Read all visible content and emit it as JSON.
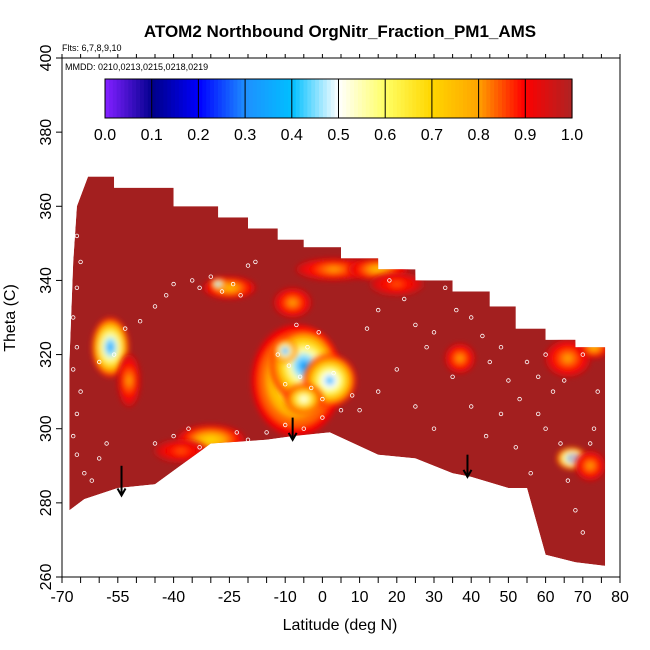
{
  "chart_data": {
    "type": "heatmap",
    "title": "ATOM2 Northbound OrgNitr_Fraction_PM1_AMS",
    "flights_note": "Flts: 6,7,8,9,10",
    "dates_note": "MMDD: 0210,0213,0215,0218,0219",
    "xlabel": "Latitude (deg N)",
    "ylabel": "Theta (C)",
    "xlim": [
      -70,
      80
    ],
    "ylim": [
      260,
      400
    ],
    "x_ticks": [
      "-70",
      "-55",
      "-40",
      "-25",
      "-10",
      "0",
      "10",
      "20",
      "30",
      "40",
      "50",
      "60",
      "70",
      "80"
    ],
    "x_tick_values": [
      -70,
      -55,
      -40,
      -25,
      -10,
      0,
      10,
      20,
      30,
      40,
      50,
      60,
      70,
      80
    ],
    "y_ticks": [
      "260",
      "280",
      "300",
      "320",
      "340",
      "360",
      "380",
      "400"
    ],
    "y_tick_values": [
      260,
      280,
      300,
      320,
      340,
      360,
      380,
      400
    ],
    "colorbar": {
      "range": [
        0,
        1
      ],
      "labels": [
        "0.0",
        "0.1",
        "0.2",
        "0.3",
        "0.4",
        "0.5",
        "0.6",
        "0.7",
        "0.8",
        "0.9",
        "1.0"
      ],
      "colors": [
        "#7f1fff",
        "#00008b",
        "#0000ff",
        "#1e90ff",
        "#00bfff",
        "#ffffff",
        "#ffff66",
        "#ffd700",
        "#ffa500",
        "#ff0000",
        "#b22222"
      ]
    },
    "background_value": 0.98,
    "background_color": "#a31f1f",
    "domain_top": [
      [
        -68,
        318
      ],
      [
        -67,
        345
      ],
      [
        -66,
        360
      ],
      [
        -63,
        368
      ],
      [
        -56,
        368
      ],
      [
        -56,
        365
      ],
      [
        -40,
        365
      ],
      [
        -40,
        360
      ],
      [
        -28,
        360
      ],
      [
        -28,
        357
      ],
      [
        -20,
        357
      ],
      [
        -20,
        354
      ],
      [
        -12,
        354
      ],
      [
        -12,
        351
      ],
      [
        -5,
        351
      ],
      [
        -5,
        349
      ],
      [
        5,
        349
      ],
      [
        5,
        346
      ],
      [
        15,
        346
      ],
      [
        15,
        343
      ],
      [
        25,
        343
      ],
      [
        25,
        340
      ],
      [
        35,
        340
      ],
      [
        35,
        337
      ],
      [
        45,
        337
      ],
      [
        45,
        333
      ],
      [
        52,
        333
      ],
      [
        52,
        327
      ],
      [
        60,
        327
      ],
      [
        60,
        324
      ],
      [
        68,
        324
      ],
      [
        68,
        322
      ],
      [
        72,
        322
      ],
      [
        76,
        322
      ],
      [
        76,
        263
      ]
    ],
    "domain_bottom": [
      [
        -68,
        278
      ],
      [
        -64,
        281
      ],
      [
        -55,
        284
      ],
      [
        -45,
        285
      ],
      [
        -30,
        296
      ],
      [
        -15,
        297
      ],
      [
        -8,
        298
      ],
      [
        2,
        299
      ],
      [
        15,
        293
      ],
      [
        25,
        292
      ],
      [
        35,
        288
      ],
      [
        40,
        287
      ],
      [
        50,
        284
      ],
      [
        55,
        284
      ],
      [
        60,
        266
      ],
      [
        68,
        264
      ],
      [
        76,
        263
      ]
    ],
    "features": [
      {
        "lat": -57,
        "theta": 322,
        "value": 0.35,
        "rlat": 5,
        "rth": 8
      },
      {
        "lat": -52,
        "theta": 313,
        "value": 0.8,
        "rlat": 3,
        "rth": 7
      },
      {
        "lat": -30,
        "theta": 297,
        "value": 0.7,
        "rlat": 9,
        "rth": 4
      },
      {
        "lat": -38,
        "theta": 294,
        "value": 0.85,
        "rlat": 7,
        "rth": 3
      },
      {
        "lat": -25,
        "theta": 338,
        "value": 0.75,
        "rlat": 7,
        "rth": 3
      },
      {
        "lat": -28,
        "theta": 339,
        "value": 0.3,
        "rlat": 2,
        "rth": 1.5
      },
      {
        "lat": -7,
        "theta": 313,
        "value": 0.55,
        "rlat": 12,
        "rth": 15
      },
      {
        "lat": -5,
        "theta": 317,
        "value": 0.35,
        "rlat": 9,
        "rth": 10
      },
      {
        "lat": 2,
        "theta": 313,
        "value": 0.4,
        "rlat": 7,
        "rth": 7
      },
      {
        "lat": -10,
        "theta": 321,
        "value": 0.3,
        "rlat": 3,
        "rth": 3
      },
      {
        "lat": -5,
        "theta": 308,
        "value": 0.5,
        "rlat": 5,
        "rth": 4
      },
      {
        "lat": -8,
        "theta": 334,
        "value": 0.8,
        "rlat": 5,
        "rth": 4
      },
      {
        "lat": 3,
        "theta": 343,
        "value": 0.8,
        "rlat": 10,
        "rth": 3
      },
      {
        "lat": 15,
        "theta": 343,
        "value": 0.75,
        "rlat": 8,
        "rth": 3
      },
      {
        "lat": 20,
        "theta": 339,
        "value": 0.85,
        "rlat": 7,
        "rth": 3
      },
      {
        "lat": 37,
        "theta": 319,
        "value": 0.8,
        "rlat": 4,
        "rth": 4
      },
      {
        "lat": 66,
        "theta": 319,
        "value": 0.8,
        "rlat": 6,
        "rth": 5
      },
      {
        "lat": 73,
        "theta": 322,
        "value": 0.75,
        "rlat": 4,
        "rth": 3
      },
      {
        "lat": 67,
        "theta": 292,
        "value": 0.3,
        "rlat": 4,
        "rth": 3
      },
      {
        "lat": 68,
        "theta": 292,
        "value": 0.05,
        "rlat": 1.5,
        "rth": 1.5
      },
      {
        "lat": 72,
        "theta": 290,
        "value": 0.8,
        "rlat": 4,
        "rth": 4
      }
    ],
    "arrows": [
      {
        "lat": -54,
        "theta_start": 290,
        "theta_end": 282
      },
      {
        "lat": -8,
        "theta_start": 303,
        "theta_end": 297
      },
      {
        "lat": 39,
        "theta_start": 293,
        "theta_end": 287
      }
    ],
    "sample_points": [
      [
        -67,
        358
      ],
      [
        -66,
        352
      ],
      [
        -65,
        345
      ],
      [
        -66,
        338
      ],
      [
        -67,
        330
      ],
      [
        -66,
        322
      ],
      [
        -67,
        316
      ],
      [
        -65,
        310
      ],
      [
        -66,
        304
      ],
      [
        -67,
        298
      ],
      [
        -66,
        293
      ],
      [
        -64,
        288
      ],
      [
        -62,
        286
      ],
      [
        -60,
        292
      ],
      [
        -58,
        296
      ],
      [
        -60,
        318
      ],
      [
        -56,
        320
      ],
      [
        -53,
        327
      ],
      [
        -49,
        329
      ],
      [
        -45,
        333
      ],
      [
        -42,
        336
      ],
      [
        -40,
        339
      ],
      [
        -35,
        340
      ],
      [
        -33,
        338
      ],
      [
        -30,
        341
      ],
      [
        -27,
        337
      ],
      [
        -24,
        339
      ],
      [
        -22,
        336
      ],
      [
        -20,
        344
      ],
      [
        -18,
        345
      ],
      [
        -45,
        296
      ],
      [
        -40,
        298
      ],
      [
        -36,
        300
      ],
      [
        -33,
        295
      ],
      [
        -23,
        299
      ],
      [
        -20,
        297
      ],
      [
        -15,
        299
      ],
      [
        -10,
        301
      ],
      [
        -5,
        300
      ],
      [
        0,
        303
      ],
      [
        5,
        305
      ],
      [
        8,
        309
      ],
      [
        10,
        305
      ],
      [
        -12,
        320
      ],
      [
        -9,
        317
      ],
      [
        -6,
        314
      ],
      [
        -3,
        311
      ],
      [
        0,
        308
      ],
      [
        3,
        315
      ],
      [
        -4,
        322
      ],
      [
        -1,
        326
      ],
      [
        -7,
        328
      ],
      [
        -10,
        312
      ],
      [
        12,
        327
      ],
      [
        15,
        332
      ],
      [
        18,
        340
      ],
      [
        22,
        335
      ],
      [
        25,
        328
      ],
      [
        28,
        322
      ],
      [
        30,
        326
      ],
      [
        33,
        338
      ],
      [
        36,
        332
      ],
      [
        40,
        330
      ],
      [
        43,
        325
      ],
      [
        45,
        318
      ],
      [
        48,
        322
      ],
      [
        50,
        313
      ],
      [
        53,
        308
      ],
      [
        55,
        318
      ],
      [
        58,
        304
      ],
      [
        60,
        300
      ],
      [
        62,
        310
      ],
      [
        64,
        296
      ],
      [
        66,
        286
      ],
      [
        68,
        278
      ],
      [
        70,
        272
      ],
      [
        72,
        296
      ],
      [
        74,
        310
      ],
      [
        15,
        310
      ],
      [
        20,
        316
      ],
      [
        25,
        306
      ],
      [
        30,
        300
      ],
      [
        35,
        314
      ],
      [
        40,
        306
      ],
      [
        44,
        298
      ],
      [
        48,
        304
      ],
      [
        52,
        295
      ],
      [
        56,
        288
      ],
      [
        58,
        314
      ],
      [
        60,
        320
      ],
      [
        65,
        313
      ],
      [
        70,
        320
      ],
      [
        73,
        300
      ]
    ]
  }
}
